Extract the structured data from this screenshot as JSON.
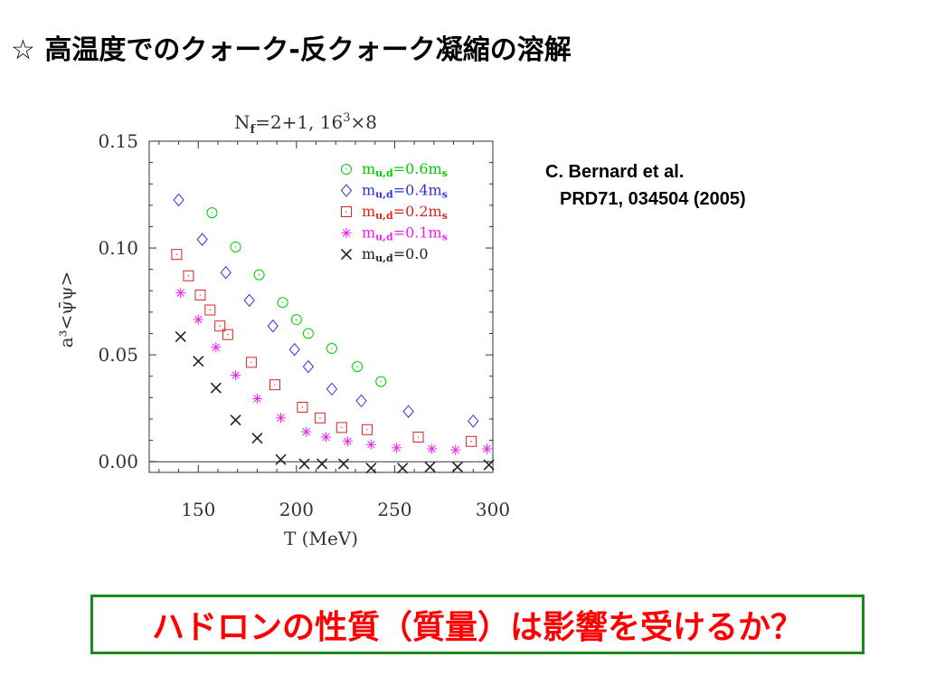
{
  "slide": {
    "title": "☆ 高温度でのクォーク-反クォーク凝縮の溶解",
    "citation_line1": "C. Bernard et al.",
    "citation_line2": "PRD71, 034504 (2005)",
    "question": "ハドロンの性質（質量）は影響を受けるか？"
  },
  "chart_data": {
    "type": "scatter",
    "title": "N_f=2+1, 16^3×8",
    "title_parts": {
      "n": "N",
      "sub": "f",
      "mid": "=2+1,  16",
      "sup": "3",
      "end": "×8"
    },
    "xlabel": "T (MeV)",
    "ylabel": "a³<ψ̄ψ>",
    "xlim": [
      125,
      300
    ],
    "ylim": [
      -0.005,
      0.15
    ],
    "x_ticks": [
      "150",
      "200",
      "250",
      "300"
    ],
    "x_tick_values": [
      150,
      200,
      250,
      300
    ],
    "y_ticks": [
      "0.00",
      "0.05",
      "0.10",
      "0.15"
    ],
    "y_tick_values": [
      0.0,
      0.05,
      0.1,
      0.15
    ],
    "grid": false,
    "zero_line": true,
    "legend_position": "top-right",
    "series": [
      {
        "name": "m_u,d=0.6m_s",
        "label_main": "m",
        "label_sub": "u,d",
        "label_mid": "=0.6m",
        "label_sub2": "s",
        "marker": "circle",
        "color": "#00cc00",
        "x": [
          157,
          169,
          181,
          193,
          200,
          206,
          218,
          231,
          243
        ],
        "y": [
          0.1165,
          0.1005,
          0.0875,
          0.0745,
          0.0665,
          0.06,
          0.053,
          0.0445,
          0.0375
        ]
      },
      {
        "name": "m_u,d=0.4m_s",
        "label_main": "m",
        "label_sub": "u,d",
        "label_mid": "=0.4m",
        "label_sub2": "s",
        "marker": "diamond",
        "color": "#3333dd",
        "x": [
          140,
          152,
          164,
          176,
          188,
          199,
          206,
          218,
          233,
          257,
          290
        ],
        "y": [
          0.1225,
          0.104,
          0.0885,
          0.0755,
          0.0635,
          0.0525,
          0.0445,
          0.034,
          0.0285,
          0.0235,
          0.019
        ]
      },
      {
        "name": "m_u,d=0.2m_s",
        "label_main": "m",
        "label_sub": "u,d",
        "label_mid": "=0.2m",
        "label_sub2": "s",
        "marker": "square",
        "color": "#dd2222",
        "x": [
          139,
          145,
          151,
          156,
          161,
          165,
          177,
          189,
          203,
          212,
          223,
          236,
          262,
          289
        ],
        "y": [
          0.097,
          0.087,
          0.078,
          0.071,
          0.0635,
          0.0595,
          0.0465,
          0.036,
          0.0255,
          0.0205,
          0.016,
          0.015,
          0.0115,
          0.0095
        ]
      },
      {
        "name": "m_u,d=0.1m_s",
        "label_main": "m",
        "label_sub": "u,d",
        "label_mid": "=0.1m",
        "label_sub2": "s",
        "marker": "asterisk",
        "color": "#ee22ee",
        "x": [
          141,
          150,
          159,
          169,
          180,
          192,
          205,
          215,
          226,
          238,
          251,
          269,
          281,
          297
        ],
        "y": [
          0.079,
          0.0665,
          0.0535,
          0.0405,
          0.0295,
          0.0205,
          0.014,
          0.0115,
          0.0095,
          0.008,
          0.0065,
          0.006,
          0.0055,
          0.006
        ]
      },
      {
        "name": "m_u,d=0.0",
        "label_main": "m",
        "label_sub": "u,d",
        "label_mid": "=0.0",
        "label_sub2": "",
        "marker": "x",
        "color": "#222222",
        "x": [
          141,
          150,
          159,
          169,
          180,
          192,
          204,
          213,
          224,
          238,
          254,
          268,
          282,
          298
        ],
        "y": [
          0.0585,
          0.047,
          0.0345,
          0.0195,
          0.011,
          0.001,
          -0.001,
          -0.001,
          -0.001,
          -0.003,
          -0.003,
          -0.0025,
          -0.0025,
          -0.0015
        ]
      }
    ]
  }
}
